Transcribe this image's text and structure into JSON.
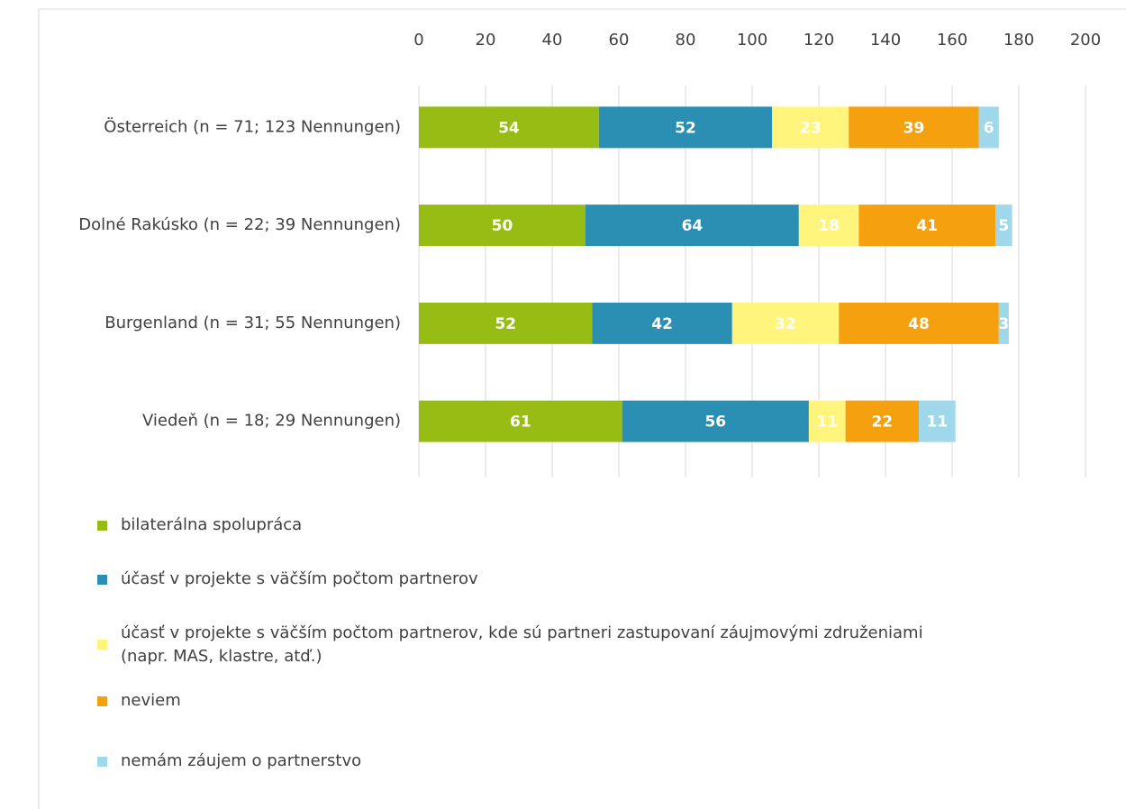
{
  "chart_data": {
    "type": "stacked_barh",
    "categories": [
      "Österreich (n = 71; 123 Nennungen)",
      "Dolné Rakúsko (n = 22; 39 Nennungen)",
      "Burgenland (n = 31; 55 Nennungen)",
      "Viedeň (n = 18; 29 Nennungen)"
    ],
    "series": [
      {
        "name": "bilaterálna spolupráca",
        "color": "#97bd14",
        "values": [
          54,
          50,
          52,
          61
        ]
      },
      {
        "name": "účasť v projekte s väčším počtom partnerov",
        "color": "#2b8fb3",
        "values": [
          52,
          64,
          42,
          56
        ]
      },
      {
        "name": "účasť v projekte s väčším počtom partnerov, kde sú partneri zastupovaní záujmovými združeniami (napr. MAS, klastre, atď.)",
        "color": "#fff57d",
        "values": [
          23,
          18,
          32,
          11
        ]
      },
      {
        "name": "neviem",
        "color": "#f5a00e",
        "values": [
          39,
          41,
          48,
          22
        ]
      },
      {
        "name": "nemám záujem o partnerstvo",
        "color": "#9fd8ea",
        "values": [
          6,
          5,
          3,
          11
        ]
      }
    ],
    "xlim": [
      0,
      200
    ],
    "xticks": [
      0,
      20,
      40,
      60,
      80,
      100,
      120,
      140,
      160,
      180,
      200
    ],
    "grid": true
  }
}
